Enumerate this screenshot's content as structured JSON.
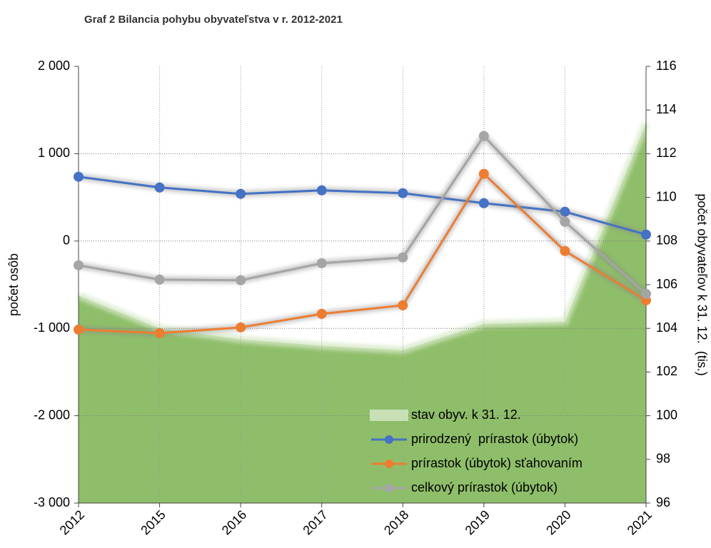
{
  "chart_data": {
    "type": "line",
    "title": "Graf 2 Bilancia pohybu obyvateľstva v r. 2012-2021",
    "y_label": "počet osôb",
    "y2_label": "počet obyvateľov k 31. 12.  (tis.)",
    "categories": [
      "2012",
      "2015",
      "2016",
      "2017",
      "2018",
      "2019",
      "2020",
      "2021"
    ],
    "ylim": [
      -3000,
      2000
    ],
    "yticks": [
      {
        "value": -3000,
        "label": "-3 000"
      },
      {
        "value": -2000,
        "label": "-2 000"
      },
      {
        "value": -1000,
        "label": "-1 000"
      },
      0,
      {
        "value": 1000,
        "label": "1 000"
      },
      {
        "value": 2000,
        "label": "2 000"
      }
    ],
    "y2lim": [
      96,
      116
    ],
    "y2ticks": [
      96,
      98,
      100,
      102,
      104,
      106,
      108,
      110,
      112,
      114,
      116
    ],
    "grid": true,
    "legend": "lower right",
    "series": [
      {
        "name": "stav obyv. k 31. 12.",
        "type": "area",
        "axis": "y2",
        "color": "#8fbe6a",
        "values": [
          105.5,
          104.0,
          103.5,
          103.2,
          103.0,
          104.2,
          104.3,
          113.4
        ]
      },
      {
        "name": "prirodzený  prírastok (úbytok)",
        "color": "#4472c4",
        "values": [
          736,
          613,
          540,
          580,
          548,
          433,
          335,
          74
        ]
      },
      {
        "name": "prírastok (úbytok) sťahovaním",
        "color": "#ed7d31",
        "values": [
          -1014,
          -1055,
          -989,
          -834,
          -736,
          769,
          -114,
          -679
        ]
      },
      {
        "name": "celkový prírastok (úbytok)",
        "color": "#a5a5a5",
        "values": [
          -278,
          -442,
          -449,
          -254,
          -188,
          1202,
          221,
          -605
        ]
      }
    ]
  }
}
